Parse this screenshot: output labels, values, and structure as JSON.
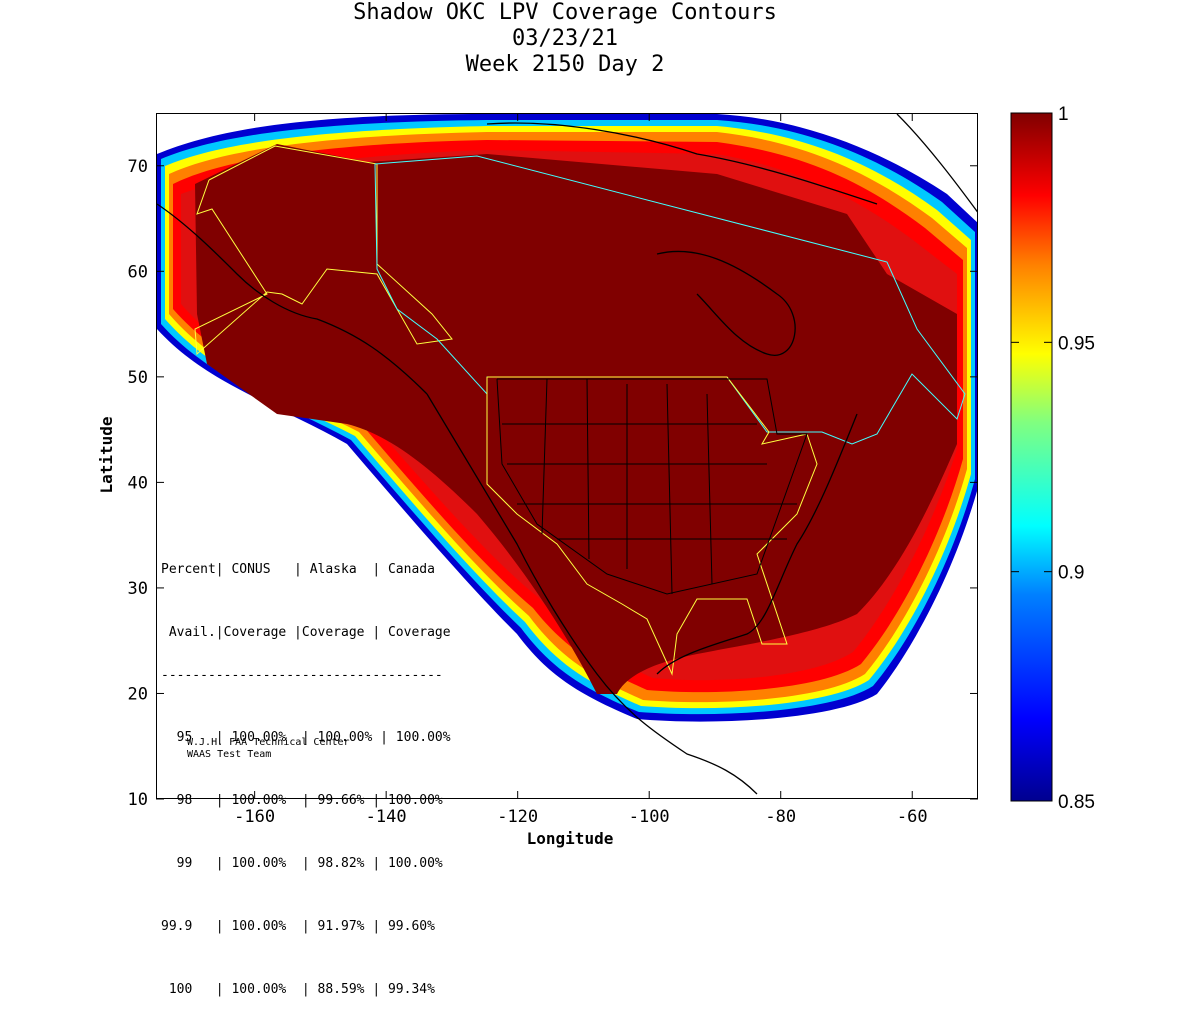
{
  "title": {
    "line1": "Shadow OKC LPV Coverage Contours",
    "line2": "03/23/21",
    "line3": "Week 2150 Day 2"
  },
  "axes": {
    "xlabel": "Longitude",
    "ylabel": "Latitude",
    "xlim": [
      -175,
      -50
    ],
    "ylim": [
      10,
      75
    ],
    "xticks": [
      -160,
      -140,
      -120,
      -100,
      -80,
      -60
    ],
    "yticks": [
      10,
      20,
      30,
      40,
      50,
      60,
      70
    ]
  },
  "colorbar": {
    "min": 0.85,
    "max": 1,
    "ticks": [
      "1",
      "0.95",
      "0.9",
      "0.85"
    ],
    "colormap": "jet",
    "colors": [
      "#00008f",
      "#0000ff",
      "#0080ff",
      "#00ffff",
      "#80ff80",
      "#ffff00",
      "#ff8000",
      "#ff0000",
      "#800000"
    ]
  },
  "stats_table": {
    "header1": "Percent| CONUS   | Alaska  | Canada",
    "header2": " Avail.|Coverage |Coverage | Coverage",
    "divider": "------------------------------------",
    "rows": [
      "  95   | 100.00%  | 100.00% | 100.00%",
      "  98   | 100.00%  | 99.66% | 100.00%",
      "  99   | 100.00%  | 98.82% | 100.00%",
      "99.9   | 100.00%  | 91.97% | 99.60%",
      " 100   | 100.00%  | 88.59% | 99.34%"
    ]
  },
  "credit": {
    "line1": "W.J.H. FAA Technical Center",
    "line2": "WAAS Test Team"
  },
  "chart_data": {
    "type": "heatmap",
    "title": "Shadow OKC LPV Coverage Contours",
    "xlabel": "Longitude",
    "ylabel": "Latitude",
    "xlim": [
      -175,
      -50
    ],
    "ylim": [
      10,
      75
    ],
    "color_range": [
      0.85,
      1
    ],
    "coverage": {
      "CONUS": {
        "95": "100.00%",
        "98": "100.00%",
        "99": "100.00%",
        "99.9": "100.00%",
        "100": "100.00%"
      },
      "Alaska": {
        "95": "100.00%",
        "98": "99.66%",
        "99": "98.82%",
        "99.9": "91.97%",
        "100": "88.59%"
      },
      "Canada": {
        "95": "100.00%",
        "98": "100.00%",
        "99": "100.00%",
        "99.9": "99.60%",
        "100": "99.34%"
      }
    }
  }
}
